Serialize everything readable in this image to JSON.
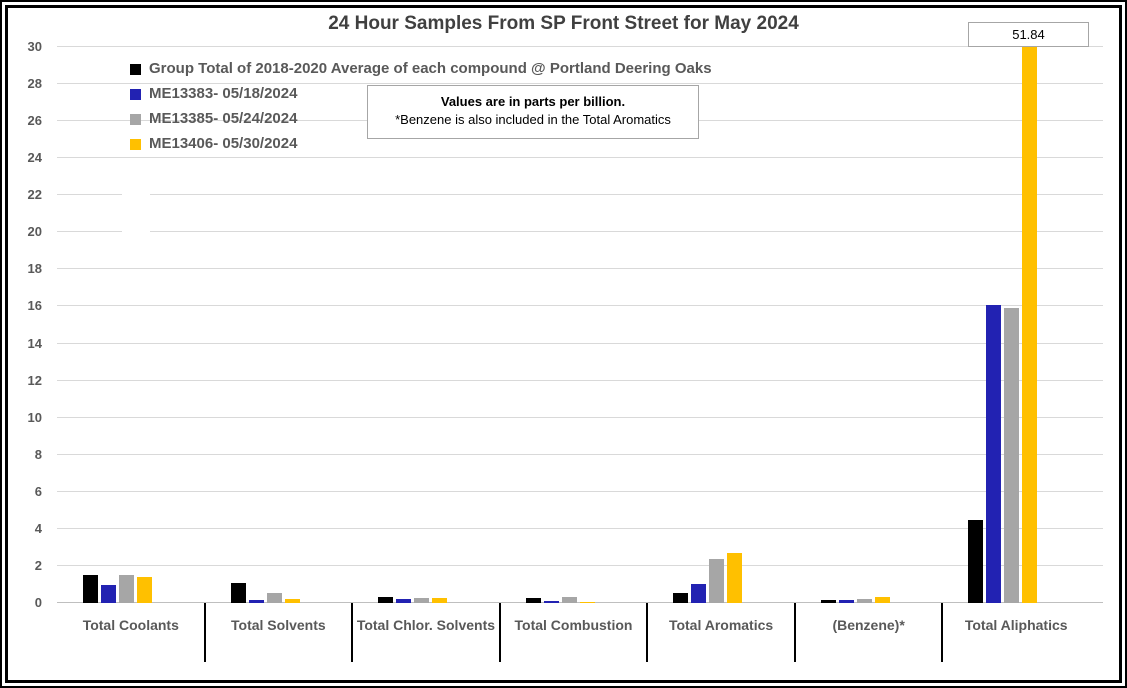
{
  "title": "24 Hour Samples From SP Front Street for May 2024",
  "note": {
    "line1": "Values are in parts per billion.",
    "line2": "*Benzene is also included in the Total Aromatics"
  },
  "chart_data": {
    "type": "bar",
    "title": "24 Hour Samples From SP Front Street for May 2024",
    "categories": [
      "Total Coolants",
      "Total Solvents",
      "Total Chlor. Solvents",
      "Total Combustion",
      "Total Aromatics",
      "(Benzene)*",
      "Total Aliphatics"
    ],
    "series": [
      {
        "name": "Group Total of 2018-2020 Average of each compound @ Portland Deering Oaks",
        "color": "#000000",
        "values": [
          1.5,
          1.1,
          0.3,
          0.25,
          0.55,
          0.15,
          4.5
        ]
      },
      {
        "name": "ME13383- 05/18/2024",
        "color": "#2222B2",
        "values": [
          0.95,
          0.15,
          0.2,
          0.1,
          1.05,
          0.15,
          16.1
        ]
      },
      {
        "name": "ME13385- 05/24/2024",
        "color": "#A6A6A6",
        "values": [
          1.5,
          0.55,
          0.25,
          0.3,
          2.4,
          0.2,
          15.9
        ]
      },
      {
        "name": "ME13406- 05/30/2024",
        "color": "#FFC000",
        "values": [
          1.4,
          0.2,
          0.25,
          0.05,
          2.7,
          0.3,
          51.84
        ]
      }
    ],
    "ylim": [
      0,
      30
    ],
    "y_step": 2,
    "grid": true,
    "legend_position": "top-left",
    "annotations": [
      {
        "text": "51.84",
        "series": "ME13406- 05/30/2024",
        "category": "Total Aliphatics",
        "style": "boxed-callout",
        "note": "bar clipped at y-axis max 30"
      }
    ]
  },
  "colors": {
    "gridline": "#D9D9D9",
    "axis_line": "#BFBFBF",
    "axis_text": "#595959",
    "title_text": "#404040",
    "tick_mark": "#000000"
  }
}
